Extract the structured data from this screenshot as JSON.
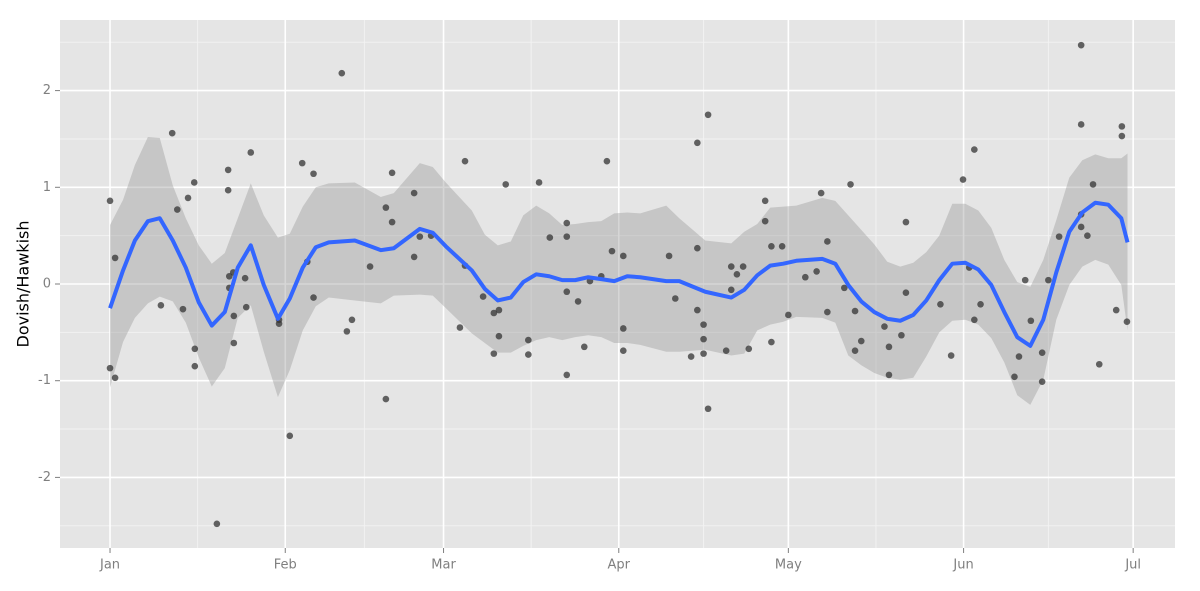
{
  "chart_data": {
    "type": "scatter",
    "y_label": "Dovish/Hawkish",
    "xlim": [
      -8.85,
      188.4
    ],
    "ylim": [
      -2.73,
      2.73
    ],
    "xticks": [
      {
        "value": 0,
        "label": "Jan"
      },
      {
        "value": 31,
        "label": "Feb"
      },
      {
        "value": 59,
        "label": "Mar"
      },
      {
        "value": 90,
        "label": "Apr"
      },
      {
        "value": 120,
        "label": "May"
      },
      {
        "value": 151,
        "label": "Jun"
      },
      {
        "value": 181,
        "label": "Jul"
      }
    ],
    "yticks": [
      -2,
      -1,
      0,
      1,
      2
    ],
    "grid": true,
    "points": {
      "color": "#333333",
      "x": [
        0,
        0,
        0.9,
        0.9,
        9,
        11,
        11.9,
        12.9,
        13.8,
        14.9,
        15,
        15,
        18.9,
        20.9,
        20.9,
        21.1,
        21.1,
        21.8,
        21.9,
        21.9,
        23.9,
        24.1,
        24.9,
        29.9,
        29.9,
        31.8,
        34,
        34.9,
        36,
        36,
        41,
        41.9,
        42.8,
        46,
        48.8,
        48.8,
        49.9,
        49.9,
        53.8,
        53.8,
        54.8,
        56.8,
        61.9,
        62.8,
        62.8,
        66,
        67.9,
        68.8,
        67.9,
        68.8,
        70,
        74,
        74,
        75.9,
        77.8,
        80.8,
        80.8,
        80.8,
        80.8,
        82.8,
        83.9,
        84.9,
        86.9,
        87.9,
        88.8,
        90.8,
        90.8,
        90.8,
        98.9,
        100,
        102.8,
        103.9,
        103.9,
        103.9,
        105,
        105,
        105,
        105.8,
        105.8,
        109,
        109.9,
        109.9,
        110.9,
        112,
        113,
        115.9,
        115.9,
        117,
        117,
        118.9,
        120,
        123,
        125,
        125.8,
        126.9,
        126.9,
        129.9,
        131,
        131.8,
        131.8,
        132.9,
        137,
        137.8,
        137.8,
        140,
        140.8,
        140.8,
        146.9,
        148.8,
        150.9,
        152,
        152.9,
        152.9,
        154,
        160,
        160.8,
        161.9,
        162.9,
        164.9,
        164.9,
        166,
        167.9,
        171.8,
        171.8,
        171.8,
        171.8,
        172.9,
        173.9,
        175,
        178,
        179,
        179,
        179.9
      ],
      "y": [
        0.86,
        -0.87,
        0.27,
        -0.97,
        -0.22,
        1.56,
        0.77,
        -0.26,
        0.89,
        1.05,
        -0.67,
        -0.85,
        -2.48,
        1.18,
        0.97,
        0.08,
        -0.04,
        0.12,
        -0.33,
        -0.61,
        0.06,
        -0.24,
        1.36,
        -0.37,
        -0.41,
        -1.57,
        1.25,
        0.23,
        1.14,
        -0.14,
        2.18,
        -0.49,
        -0.37,
        0.18,
        0.79,
        -1.19,
        1.15,
        0.64,
        0.94,
        0.28,
        0.49,
        0.5,
        -0.45,
        1.27,
        0.19,
        -0.13,
        -0.3,
        -0.27,
        -0.72,
        -0.54,
        1.03,
        -0.58,
        -0.73,
        1.05,
        0.48,
        0.63,
        0.49,
        -0.08,
        -0.94,
        -0.18,
        -0.65,
        0.03,
        0.08,
        1.27,
        0.34,
        0.29,
        -0.46,
        -0.69,
        0.29,
        -0.15,
        -0.75,
        1.46,
        0.37,
        -0.27,
        -0.42,
        -0.57,
        -0.72,
        1.75,
        -1.29,
        -0.69,
        0.18,
        -0.06,
        0.1,
        0.18,
        -0.67,
        0.86,
        0.65,
        0.39,
        -0.6,
        0.39,
        -0.32,
        0.07,
        0.13,
        0.94,
        0.44,
        -0.29,
        -0.04,
        1.03,
        -0.28,
        -0.69,
        -0.59,
        -0.44,
        -0.94,
        -0.65,
        -0.53,
        0.64,
        -0.09,
        -0.21,
        -0.74,
        1.08,
        0.17,
        1.39,
        -0.37,
        -0.21,
        -0.96,
        -0.75,
        0.04,
        -0.38,
        -1.01,
        -0.71,
        0.04,
        0.49,
        2.47,
        1.65,
        0.72,
        0.59,
        0.5,
        1.03,
        -0.83,
        -0.27,
        1.63,
        1.53,
        -0.39
      ]
    },
    "smooth": {
      "color": "#3366ff",
      "band_color": "#999999",
      "x": [
        0,
        2.3,
        4.4,
        6.7,
        8.8,
        11.1,
        13.4,
        15.7,
        18.0,
        20.3,
        22.6,
        24.9,
        27.2,
        29.7,
        31.8,
        34.1,
        36.4,
        38.7,
        43.3,
        47.9,
        50.2,
        54.8,
        57.1,
        59.4,
        64.0,
        66.3,
        68.6,
        70.9,
        73.1,
        75.4,
        77.7,
        80.0,
        82.3,
        84.6,
        86.9,
        89.2,
        91.5,
        93.8,
        98.4,
        100.7,
        105.3,
        109.9,
        112.2,
        114.5,
        116.8,
        119.1,
        121.4,
        126.0,
        128.3,
        130.6,
        132.9,
        135.2,
        137.5,
        139.8,
        142.1,
        144.4,
        146.7,
        149.0,
        151.3,
        153.6,
        155.9,
        158.2,
        160.5,
        162.8,
        165.1,
        167.4,
        169.7,
        172.0,
        174.3,
        176.6,
        178.9,
        180
      ],
      "y": [
        -0.25,
        0.14,
        0.45,
        0.65,
        0.68,
        0.45,
        0.17,
        -0.19,
        -0.43,
        -0.29,
        0.17,
        0.4,
        -0.01,
        -0.36,
        -0.15,
        0.17,
        0.38,
        0.43,
        0.45,
        0.35,
        0.37,
        0.57,
        0.53,
        0.39,
        0.14,
        -0.05,
        -0.17,
        -0.14,
        0.02,
        0.1,
        0.08,
        0.04,
        0.04,
        0.07,
        0.05,
        0.03,
        0.08,
        0.07,
        0.03,
        0.03,
        -0.08,
        -0.14,
        -0.06,
        0.09,
        0.19,
        0.21,
        0.24,
        0.26,
        0.21,
        -0.01,
        -0.18,
        -0.29,
        -0.36,
        -0.38,
        -0.32,
        -0.17,
        0.04,
        0.21,
        0.22,
        0.15,
        -0.01,
        -0.29,
        -0.55,
        -0.64,
        -0.37,
        0.12,
        0.54,
        0.74,
        0.84,
        0.82,
        0.68,
        0.43
      ],
      "upper": [
        0.61,
        0.87,
        1.23,
        1.52,
        1.51,
        1.02,
        0.68,
        0.4,
        0.21,
        0.32,
        0.68,
        1.04,
        0.71,
        0.48,
        0.52,
        0.8,
        1.0,
        1.04,
        1.05,
        0.9,
        0.94,
        1.25,
        1.21,
        1.05,
        0.76,
        0.51,
        0.4,
        0.44,
        0.71,
        0.81,
        0.73,
        0.61,
        0.62,
        0.64,
        0.65,
        0.73,
        0.74,
        0.73,
        0.81,
        0.68,
        0.45,
        0.42,
        0.54,
        0.62,
        0.79,
        0.8,
        0.81,
        0.89,
        0.86,
        0.71,
        0.56,
        0.41,
        0.23,
        0.18,
        0.22,
        0.33,
        0.5,
        0.83,
        0.83,
        0.76,
        0.58,
        0.25,
        0.02,
        -0.03,
        0.25,
        0.66,
        1.1,
        1.28,
        1.34,
        1.3,
        1.3,
        1.35
      ],
      "lower": [
        -1.07,
        -0.6,
        -0.35,
        -0.2,
        -0.13,
        -0.18,
        -0.4,
        -0.76,
        -1.06,
        -0.87,
        -0.35,
        -0.22,
        -0.7,
        -1.17,
        -0.89,
        -0.48,
        -0.23,
        -0.14,
        -0.17,
        -0.2,
        -0.12,
        -0.11,
        -0.12,
        -0.25,
        -0.51,
        -0.61,
        -0.71,
        -0.71,
        -0.64,
        -0.58,
        -0.55,
        -0.58,
        -0.55,
        -0.53,
        -0.55,
        -0.61,
        -0.61,
        -0.63,
        -0.7,
        -0.7,
        -0.68,
        -0.74,
        -0.72,
        -0.48,
        -0.42,
        -0.39,
        -0.34,
        -0.35,
        -0.4,
        -0.74,
        -0.84,
        -0.92,
        -0.97,
        -0.99,
        -0.97,
        -0.75,
        -0.5,
        -0.38,
        -0.37,
        -0.42,
        -0.56,
        -0.81,
        -1.15,
        -1.25,
        -0.99,
        -0.37,
        -0.01,
        0.18,
        0.25,
        0.2,
        -0.01,
        -0.48
      ]
    }
  }
}
